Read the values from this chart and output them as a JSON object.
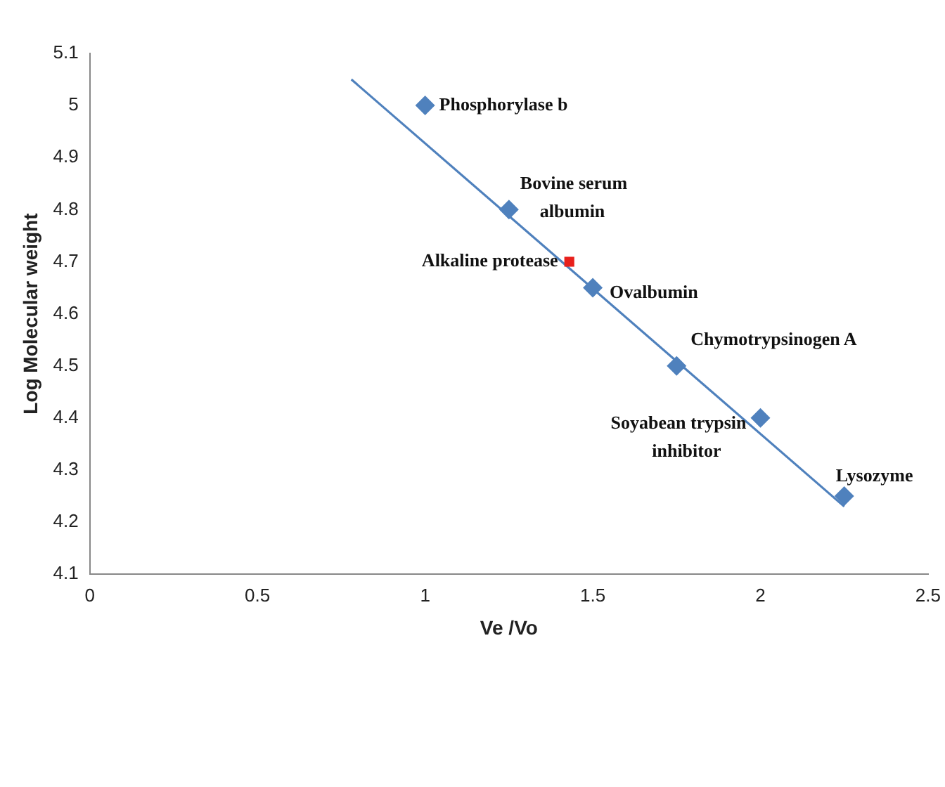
{
  "chart_data": {
    "type": "scatter",
    "xlabel": "Ve /Vo",
    "ylabel": "Log Molecular weight",
    "series": [
      {
        "type": "scatter",
        "marker": "diamond",
        "color": "#4f81bd",
        "x": [
          1,
          1.25,
          1.5,
          1.75,
          2,
          2.25
        ],
        "values": [
          5,
          4.8,
          4.65,
          4.5,
          4.4,
          4.25
        ]
      },
      {
        "type": "scatter",
        "marker": "square",
        "color": "#e8201c",
        "x": [
          1.43
        ],
        "values": [
          4.7
        ]
      },
      {
        "type": "line",
        "marker": "none",
        "color": "#4f81bd",
        "x": [
          0.78,
          2.25
        ],
        "values": [
          5.05,
          4.23
        ]
      }
    ],
    "annotations": [
      {
        "text": "Phosphorylase b",
        "x": 1,
        "y": 5
      },
      {
        "text": "Bovine serum albumin",
        "x": 1.25,
        "y": 4.8
      },
      {
        "text": "Alkaline protease",
        "x": 1.43,
        "y": 4.7
      },
      {
        "text": "Ovalbumin",
        "x": 1.5,
        "y": 4.65
      },
      {
        "text": "Chymotrypsinogen A",
        "x": 1.75,
        "y": 4.5
      },
      {
        "text": "Soyabean trypsin inhibitor",
        "x": 2,
        "y": 4.4
      },
      {
        "text": "Lysozyme",
        "x": 2.25,
        "y": 4.25
      }
    ],
    "xlim": [
      0,
      2.5
    ],
    "xticks": [
      0,
      0.5,
      1,
      1.5,
      2,
      2.5
    ],
    "ylim": [
      4.1,
      5.1
    ],
    "yticks": [
      4.1,
      4.2,
      4.3,
      4.4,
      4.5,
      4.6,
      4.7,
      4.8,
      4.9,
      5,
      5.1
    ],
    "grid": false,
    "legend": false
  }
}
